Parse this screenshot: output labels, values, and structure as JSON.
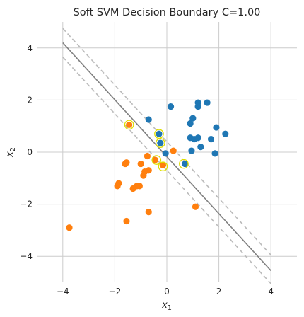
{
  "chart_data": {
    "type": "scatter",
    "title": "Soft SVM Decision Boundary C=1.00",
    "xlabel": {
      "base": "x",
      "sub": "1"
    },
    "ylabel": {
      "base": "x",
      "sub": "2"
    },
    "xlim": [
      -5,
      5
    ],
    "ylim": [
      -5,
      5
    ],
    "xticks": [
      -4,
      -2,
      0,
      2,
      4
    ],
    "yticks": [
      -4,
      -2,
      0,
      2,
      4
    ],
    "xtick_labels": [
      "−4",
      "−2",
      "0",
      "2",
      "4"
    ],
    "ytick_labels": [
      "−4",
      "−2",
      "0",
      "2",
      "4"
    ],
    "grid": true,
    "colors": {
      "class_pos": "#1f77b4",
      "class_neg": "#ff7f0e",
      "boundary": "#808080",
      "margin": "#bbbbbb",
      "support_vector_ring": "#dede00",
      "grid": "#cccccc",
      "background": "#ffffff"
    },
    "lines": {
      "boundary": [
        [
          -4.0,
          4.2
        ],
        [
          4.0,
          -4.55
        ]
      ],
      "margin_upper": [
        [
          -4.0,
          4.75
        ],
        [
          4.0,
          -3.95
        ]
      ],
      "margin_lower": [
        [
          -4.0,
          3.65
        ],
        [
          4.0,
          -5.05
        ]
      ]
    },
    "series": [
      {
        "points": [
          [
            1.2,
            1.9
          ],
          [
            1.55,
            1.9
          ],
          [
            1.2,
            1.75
          ],
          [
            0.15,
            1.75
          ],
          [
            1.0,
            1.3
          ],
          [
            0.9,
            1.1
          ],
          [
            1.9,
            0.95
          ],
          [
            2.25,
            0.7
          ],
          [
            1.7,
            0.5
          ],
          [
            0.9,
            0.55
          ],
          [
            1.05,
            0.5
          ],
          [
            1.2,
            0.55
          ],
          [
            1.3,
            0.2
          ],
          [
            0.95,
            0.05
          ],
          [
            1.85,
            -0.05
          ],
          [
            -0.7,
            1.25
          ],
          [
            -0.3,
            0.7
          ],
          [
            -0.25,
            0.35
          ],
          [
            0.7,
            -0.45
          ],
          [
            -0.05,
            -0.05
          ]
        ]
      },
      {
        "points": [
          [
            -1.45,
            1.05
          ],
          [
            0.25,
            0.05
          ],
          [
            -0.75,
            -0.15
          ],
          [
            -1.0,
            -0.45
          ],
          [
            -0.45,
            -0.3
          ],
          [
            -0.15,
            -0.5
          ],
          [
            -0.7,
            -0.7
          ],
          [
            -0.85,
            -0.75
          ],
          [
            -0.9,
            -0.9
          ],
          [
            -1.55,
            -0.4
          ],
          [
            -1.6,
            -0.45
          ],
          [
            -1.85,
            -1.2
          ],
          [
            -1.9,
            -1.3
          ],
          [
            -1.05,
            -1.3
          ],
          [
            -1.15,
            -1.3
          ],
          [
            -1.3,
            -1.4
          ],
          [
            -0.7,
            -2.3
          ],
          [
            1.1,
            -2.1
          ],
          [
            -1.55,
            -2.65
          ],
          [
            -3.75,
            -2.9
          ]
        ]
      }
    ],
    "support_vectors": [
      [
        -1.45,
        1.05
      ],
      [
        -0.3,
        0.7
      ],
      [
        -0.25,
        0.35
      ],
      [
        -0.4,
        -0.3
      ],
      [
        -0.15,
        -0.55
      ],
      [
        0.65,
        -0.45
      ]
    ]
  }
}
